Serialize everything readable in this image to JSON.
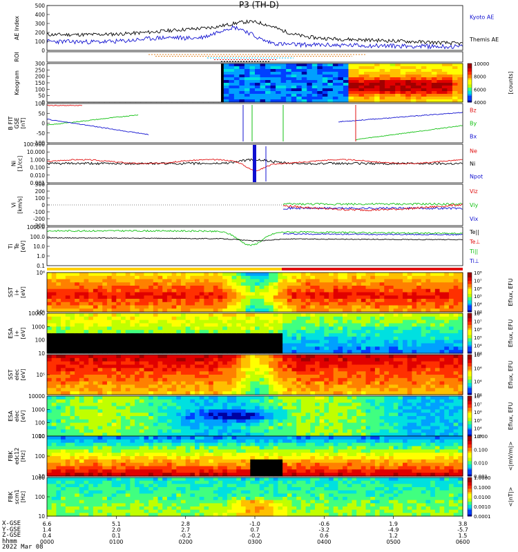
{
  "title": "P3 (TH-D)",
  "date": "2022 Mar 08",
  "colors": {
    "black": "#000000",
    "blue": "#1010d0",
    "red": "#e01010",
    "green": "#10c010",
    "cyan": "#00c0ff",
    "orange": "#e08020"
  },
  "chart_data": [
    {
      "type": "line",
      "ylabel": "AE Index",
      "ylim": [
        0,
        500
      ],
      "yticks": [
        "500",
        "400",
        "300",
        "200",
        "100",
        "0"
      ],
      "series": [
        {
          "name": "Kyoto AE",
          "color": "#1010d0"
        },
        {
          "name": "Themis AE",
          "color": "#000000"
        }
      ]
    },
    {
      "type": "bar",
      "ylabel": "ROI",
      "ylim": [
        0,
        1
      ]
    },
    {
      "type": "heatmap",
      "ylabel": "Keogram",
      "yticks": [
        "300",
        "250",
        "200",
        "150",
        "100",
        "50",
        "0"
      ],
      "colorbar": {
        "label": "[counts]",
        "ticks": [
          "10000",
          "8000",
          "6000",
          "4000"
        ]
      }
    },
    {
      "type": "line",
      "ylabel": "B FIT\nGSE\n[nT]",
      "yticks": [
        "100",
        "50",
        "0",
        "-50",
        "-100"
      ],
      "series": [
        {
          "name": "Bz",
          "color": "#e01010"
        },
        {
          "name": "By",
          "color": "#10c010"
        },
        {
          "name": "Bx",
          "color": "#1010d0"
        }
      ]
    },
    {
      "type": "line",
      "ylabel": "Ni\n[1/cc]",
      "scale": "log",
      "yticks": [
        "100.000",
        "10.000",
        "1.000",
        "0.100",
        "0.010",
        "0.001"
      ],
      "series": [
        {
          "name": "Ne",
          "color": "#e01010"
        },
        {
          "name": "Ni",
          "color": "#000000"
        },
        {
          "name": "Npot",
          "color": "#1010d0"
        }
      ]
    },
    {
      "type": "line",
      "ylabel": "Vi\n[km/s]",
      "yticks": [
        "300",
        "200",
        "100",
        "0",
        "-100",
        "-200",
        "-300"
      ],
      "series": [
        {
          "name": "Viz",
          "color": "#e01010"
        },
        {
          "name": "Viy",
          "color": "#10c010"
        },
        {
          "name": "Vix",
          "color": "#1010d0"
        }
      ]
    },
    {
      "type": "line",
      "ylabel": "Ti\nTe\n[eV]",
      "scale": "log",
      "yticks": [
        "1000.0",
        "100.0",
        "10.0",
        "1.0",
        "0.1"
      ],
      "series": [
        {
          "name": "Te||",
          "color": "#000000"
        },
        {
          "name": "Te⊥",
          "color": "#e01010"
        },
        {
          "name": "Ti||",
          "color": "#10c010"
        },
        {
          "name": "Ti⊥",
          "color": "#1010d0"
        }
      ]
    },
    {
      "type": "heatmap",
      "ylabel": "SST\ni+\n[eV]",
      "yticks": [
        "10⁶",
        "10⁵"
      ],
      "colorbar": {
        "label": "Eflux, EFU",
        "ticks": [
          "10⁸",
          "10⁷",
          "10⁶",
          "10⁵",
          "10⁴",
          "10³"
        ]
      }
    },
    {
      "type": "heatmap",
      "ylabel": "ESA\ni+\n[eV]",
      "yticks": [
        "10000",
        "1000",
        "100",
        "10"
      ],
      "colorbar": {
        "label": "Eflux, EFU",
        "ticks": [
          "10⁸",
          "10⁷",
          "10⁶",
          "10⁵",
          "10⁴",
          "10³"
        ]
      }
    },
    {
      "type": "heatmap",
      "ylabel": "SST\nelec\n[eV]",
      "yticks": [
        "10⁵"
      ],
      "colorbar": {
        "label": "Eflux, EFU",
        "ticks": [
          "10⁸",
          "10⁶",
          "10⁴",
          "10²"
        ]
      }
    },
    {
      "type": "heatmap",
      "ylabel": "ESA\nelec\n[eV]",
      "yticks": [
        "10000",
        "1000",
        "100",
        "10"
      ],
      "colorbar": {
        "label": "Eflux, EFU",
        "ticks": [
          "10⁸",
          "10⁷",
          "10⁶",
          "10⁵",
          "10⁴",
          "10³"
        ]
      }
    },
    {
      "type": "heatmap",
      "ylabel": "FBK\nedc12\n[Hz]",
      "yticks": [
        "1000",
        "100",
        "10"
      ],
      "colorbar": {
        "label": "<|mV/m|>",
        "ticks": [
          "1.000",
          "0.100",
          "0.010",
          "0.001"
        ]
      }
    },
    {
      "type": "heatmap",
      "ylabel": "FBK\nscm1\n[Hz]",
      "yticks": [
        "1000",
        "100",
        "10"
      ],
      "colorbar": {
        "label": "<|nT|>",
        "ticks": [
          "1.0000",
          "0.1000",
          "0.0100",
          "0.0010",
          "0.0001"
        ]
      }
    }
  ],
  "x_axis": {
    "row_labels": [
      "X-GSE",
      "Y-GSE",
      "Z-GSE",
      "hhmm"
    ],
    "ticks": [
      {
        "x": "6.6",
        "y": "1.4",
        "z": "0.4",
        "t": "0000"
      },
      {
        "x": "5.1",
        "y": "2.0",
        "z": "0.1",
        "t": "0100"
      },
      {
        "x": "2.8",
        "y": "2.7",
        "z": "-0.2",
        "t": "0200"
      },
      {
        "x": "-1.0",
        "y": "0.7",
        "z": "-0.2",
        "t": "0300"
      },
      {
        "x": "-0.6",
        "y": "-3.2",
        "z": "0.6",
        "t": "0400"
      },
      {
        "x": "1.9",
        "y": "-4.9",
        "z": "1.2",
        "t": "0500"
      },
      {
        "x": "3.8",
        "y": "-5.7",
        "z": "1.5",
        "t": "0600"
      }
    ]
  }
}
